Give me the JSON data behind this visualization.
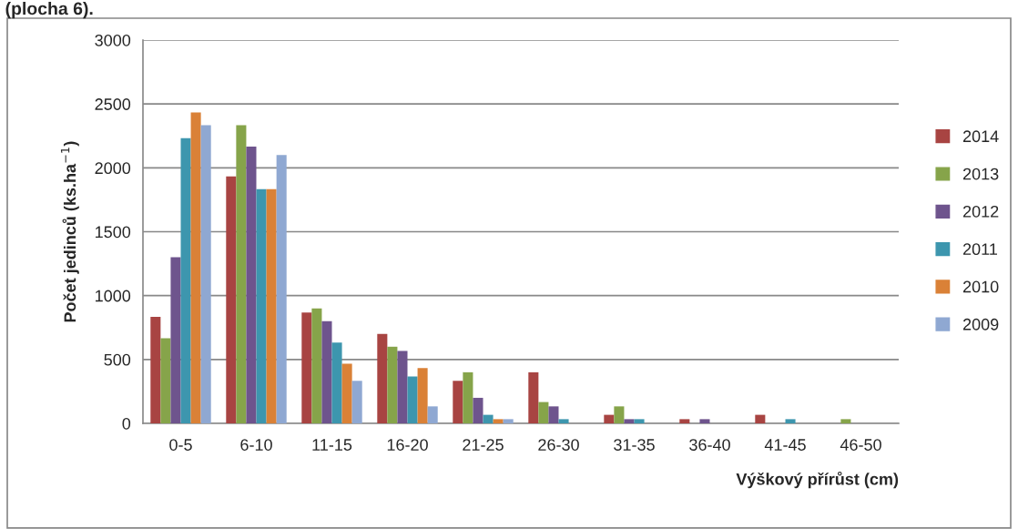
{
  "chart_data": {
    "type": "bar",
    "xlabel": "Výškový přírůst (cm)",
    "ylabel": "Počet jedinců (ks.ha$^{−1}$)",
    "annotations": [
      "(plocha 6)."
    ],
    "categories": [
      "0-5",
      "6-10",
      "11-15",
      "16-20",
      "21-25",
      "26-30",
      "31-35",
      "36-40",
      "41-45",
      "46-50"
    ],
    "series": [
      {
        "name": "2014",
        "color": "#a84442",
        "values": [
          833,
          1933,
          867,
          700,
          333,
          400,
          67,
          33,
          67,
          0
        ]
      },
      {
        "name": "2013",
        "color": "#86a44a",
        "values": [
          667,
          2333,
          900,
          600,
          400,
          167,
          133,
          0,
          0,
          33
        ]
      },
      {
        "name": "2012",
        "color": "#6e548d",
        "values": [
          1300,
          2167,
          800,
          567,
          200,
          133,
          33,
          33,
          0,
          0
        ]
      },
      {
        "name": "2011",
        "color": "#3d96ae",
        "values": [
          2233,
          1833,
          633,
          367,
          67,
          33,
          33,
          0,
          33,
          0
        ]
      },
      {
        "name": "2010",
        "color": "#da8137",
        "values": [
          2433,
          1833,
          467,
          433,
          33,
          0,
          0,
          0,
          0,
          0
        ]
      },
      {
        "name": "2009",
        "color": "#8fa8d2",
        "values": [
          2333,
          2100,
          333,
          133,
          33,
          0,
          0,
          0,
          0,
          0
        ]
      }
    ],
    "ylim": [
      0,
      3000
    ],
    "yticks": [
      0,
      500,
      1000,
      1500,
      2000,
      2500,
      3000
    ],
    "grid": "y",
    "legend": "right"
  }
}
